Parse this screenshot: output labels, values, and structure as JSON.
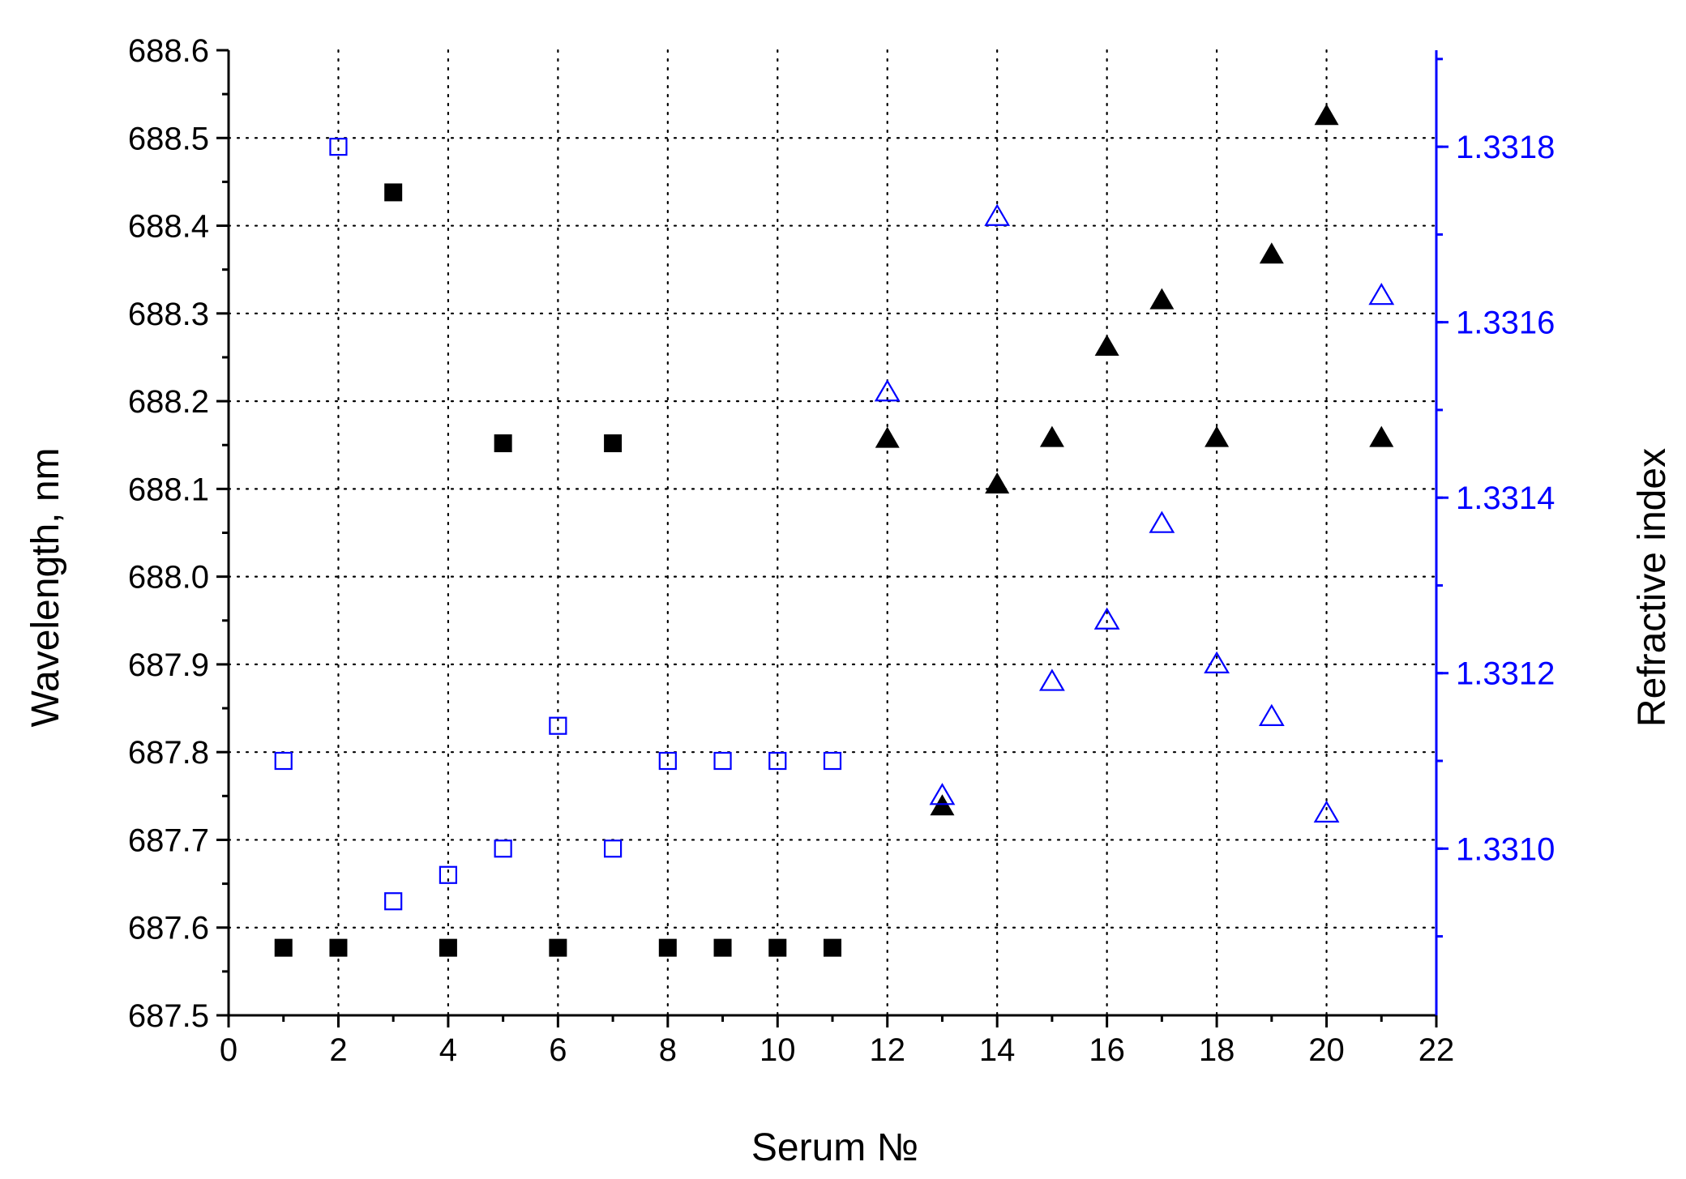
{
  "chart_data": {
    "type": "scatter",
    "xlabel": "Serum №",
    "ylabel": "Wavelength, nm",
    "y2label": "Refractive index",
    "xlim": [
      0,
      22
    ],
    "ylim": [
      687.5,
      688.6
    ],
    "y2lim": [
      1.33081,
      1.33191
    ],
    "x_ticks": [
      0,
      2,
      4,
      6,
      8,
      10,
      12,
      14,
      16,
      18,
      20,
      22
    ],
    "x_tick_labels": [
      "0",
      "2",
      "4",
      "6",
      "8",
      "10",
      "12",
      "14",
      "16",
      "18",
      "20",
      "22"
    ],
    "y_ticks": [
      687.5,
      687.6,
      687.7,
      687.8,
      687.9,
      688.0,
      688.1,
      688.2,
      688.3,
      688.4,
      688.5,
      688.6
    ],
    "y_tick_labels": [
      "687.5",
      "687.6",
      "687.7",
      "687.8",
      "687.9",
      "688.0",
      "688.1",
      "688.2",
      "688.3",
      "688.4",
      "688.5",
      "688.6"
    ],
    "y2_ticks": [
      1.331,
      1.3312,
      1.3314,
      1.3316,
      1.3318
    ],
    "y2_tick_labels": [
      "1.3310",
      "1.3312",
      "1.3314",
      "1.3316",
      "1.3318"
    ],
    "grid": true,
    "legend": "none",
    "colors": {
      "primary": "#000000",
      "secondary": "#0000ff"
    },
    "series": [
      {
        "marker": "filled-square",
        "axis": "left",
        "color": "#000000",
        "x": [
          1,
          2,
          3,
          4,
          5,
          6,
          7,
          8,
          9,
          10,
          11
        ],
        "y": [
          687.577,
          687.577,
          688.438,
          687.577,
          688.152,
          687.577,
          688.152,
          687.577,
          687.577,
          687.577,
          687.577
        ]
      },
      {
        "marker": "open-square",
        "axis": "right",
        "color": "#0000ff",
        "x": [
          1,
          2,
          3,
          4,
          5,
          6,
          7,
          8,
          9,
          10,
          11
        ],
        "y": [
          1.3311,
          1.3318,
          1.33094,
          1.33097,
          1.331,
          1.33114,
          1.331,
          1.3311,
          1.3311,
          1.3311,
          1.3311
        ]
      },
      {
        "marker": "filled-triangle",
        "axis": "left",
        "color": "#000000",
        "x": [
          12,
          13,
          14,
          15,
          16,
          17,
          18,
          19,
          20,
          21
        ],
        "y": [
          688.157,
          687.738,
          688.105,
          688.158,
          688.262,
          688.315,
          688.158,
          688.367,
          688.525,
          688.158
        ]
      },
      {
        "marker": "open-triangle",
        "axis": "right",
        "color": "#0000ff",
        "x": [
          12,
          13,
          14,
          15,
          16,
          17,
          18,
          19,
          20,
          21
        ],
        "y": [
          1.33152,
          1.33106,
          1.33172,
          1.33119,
          1.33126,
          1.33137,
          1.33121,
          1.33115,
          1.33104,
          1.33163
        ]
      }
    ]
  }
}
